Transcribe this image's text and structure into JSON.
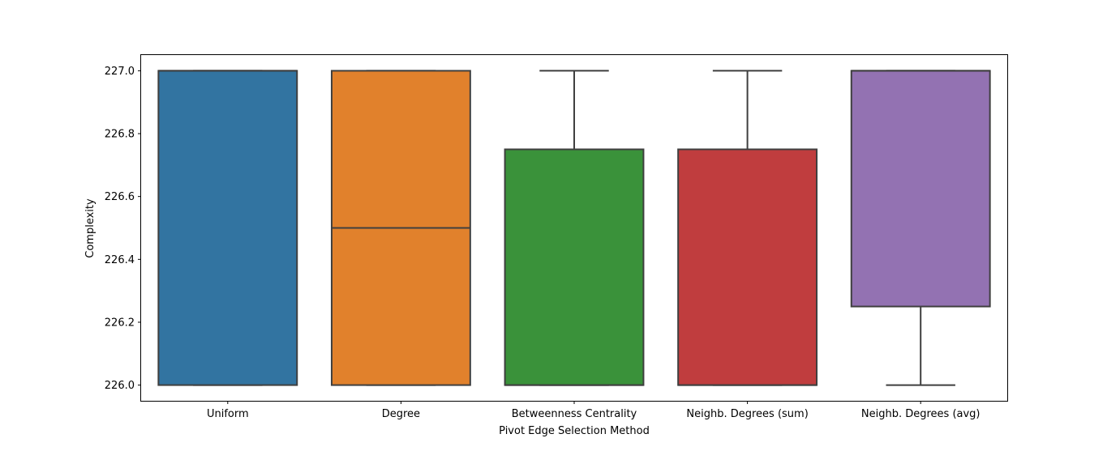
{
  "chart_data": {
    "type": "box",
    "title": "",
    "xlabel": "Pivot Edge Selection Method",
    "ylabel": "Complexity",
    "ylim": [
      225.95,
      227.05
    ],
    "yticks": [
      226.0,
      226.2,
      226.4,
      226.6,
      226.8,
      227.0
    ],
    "ytick_labels": [
      "226.0",
      "226.2",
      "226.4",
      "226.6",
      "226.8",
      "227.0"
    ],
    "grid": false,
    "categories": [
      "Uniform",
      "Degree",
      "Betweenness Centrality",
      "Neighb. Degrees (sum)",
      "Neighb. Degrees (avg)"
    ],
    "boxes": [
      {
        "category": "Uniform",
        "color": "#3274a1",
        "whisker_low": 226.0,
        "q1": 226.0,
        "median": 227.0,
        "q3": 227.0,
        "whisker_high": 227.0
      },
      {
        "category": "Degree",
        "color": "#e1812c",
        "whisker_low": 226.0,
        "q1": 226.0,
        "median": 226.5,
        "q3": 227.0,
        "whisker_high": 227.0
      },
      {
        "category": "Betweenness Centrality",
        "color": "#3a923a",
        "whisker_low": 226.0,
        "q1": 226.0,
        "median": 226.0,
        "q3": 226.75,
        "whisker_high": 227.0
      },
      {
        "category": "Neighb. Degrees (sum)",
        "color": "#c03d3e",
        "whisker_low": 226.0,
        "q1": 226.0,
        "median": 226.0,
        "q3": 226.75,
        "whisker_high": 227.0
      },
      {
        "category": "Neighb. Degrees (avg)",
        "color": "#9372b2",
        "whisker_low": 226.0,
        "q1": 226.25,
        "median": 227.0,
        "q3": 227.0,
        "whisker_high": 227.0
      }
    ]
  }
}
